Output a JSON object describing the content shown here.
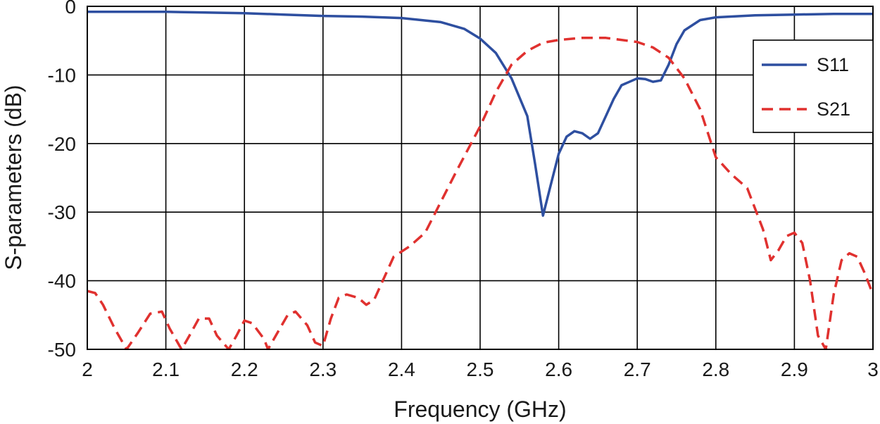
{
  "chart_data": {
    "type": "line",
    "title": "",
    "xlabel": "Frequency (GHz)",
    "ylabel": "S-parameters (dB)",
    "xlim": [
      2,
      3
    ],
    "ylim": [
      -50,
      0
    ],
    "x_ticks": [
      "2",
      "2.1",
      "2.2",
      "2.3",
      "2.4",
      "2.5",
      "2.6",
      "2.7",
      "2.8",
      "2.9",
      "3"
    ],
    "y_ticks": [
      "0",
      "-10",
      "-20",
      "-30",
      "-40",
      "-50"
    ],
    "x_tick_values": [
      2,
      2.1,
      2.2,
      2.3,
      2.4,
      2.5,
      2.6,
      2.7,
      2.8,
      2.9,
      3
    ],
    "y_tick_values": [
      0,
      -10,
      -20,
      -30,
      -40,
      -50
    ],
    "grid": true,
    "legend_position": "top-right",
    "series": [
      {
        "name": "S11",
        "color": "#2e4fa0",
        "dash": "solid",
        "x": [
          2.0,
          2.1,
          2.15,
          2.2,
          2.25,
          2.3,
          2.35,
          2.4,
          2.45,
          2.48,
          2.5,
          2.52,
          2.54,
          2.56,
          2.57,
          2.58,
          2.59,
          2.6,
          2.61,
          2.62,
          2.63,
          2.64,
          2.65,
          2.66,
          2.67,
          2.68,
          2.7,
          2.71,
          2.72,
          2.73,
          2.74,
          2.75,
          2.76,
          2.78,
          2.8,
          2.85,
          2.9,
          2.95,
          3.0
        ],
        "y": [
          -0.8,
          -0.8,
          -0.9,
          -1.0,
          -1.2,
          -1.4,
          -1.5,
          -1.7,
          -2.3,
          -3.3,
          -4.7,
          -6.8,
          -10.5,
          -16,
          -23,
          -30.5,
          -26,
          -21.5,
          -19,
          -18.2,
          -18.5,
          -19.3,
          -18.5,
          -16,
          -13.5,
          -11.5,
          -10.5,
          -10.6,
          -11,
          -10.8,
          -8.5,
          -5.5,
          -3.5,
          -2.0,
          -1.6,
          -1.3,
          -1.2,
          -1.1,
          -1.1
        ]
      },
      {
        "name": "S21",
        "color": "#e0312f",
        "dash": "dashed",
        "x": [
          2.0,
          2.01,
          2.02,
          2.035,
          2.05,
          2.065,
          2.08,
          2.095,
          2.105,
          2.12,
          2.13,
          2.142,
          2.155,
          2.165,
          2.18,
          2.19,
          2.2,
          2.21,
          2.225,
          2.23,
          2.24,
          2.255,
          2.265,
          2.28,
          2.29,
          2.3,
          2.31,
          2.32,
          2.33,
          2.345,
          2.355,
          2.365,
          2.38,
          2.39,
          2.41,
          2.43,
          2.45,
          2.47,
          2.5,
          2.52,
          2.54,
          2.56,
          2.58,
          2.6,
          2.63,
          2.66,
          2.7,
          2.72,
          2.74,
          2.76,
          2.78,
          2.8,
          2.82,
          2.84,
          2.86,
          2.87,
          2.88,
          2.89,
          2.9,
          2.91,
          2.92,
          2.93,
          2.94,
          2.95,
          2.96,
          2.97,
          2.98,
          2.99,
          3.0
        ],
        "y": [
          -41.5,
          -41.8,
          -43.5,
          -47,
          -50,
          -47.5,
          -44.8,
          -44.5,
          -47,
          -50,
          -48,
          -45.5,
          -45.5,
          -48,
          -50,
          -48,
          -45.8,
          -46.2,
          -48.5,
          -50,
          -48,
          -45,
          -44.5,
          -46.5,
          -49,
          -49.5,
          -45.5,
          -42.5,
          -42,
          -42.5,
          -43.5,
          -42.8,
          -39,
          -36.5,
          -35,
          -33,
          -28.5,
          -24,
          -17.5,
          -12.5,
          -8.5,
          -6.5,
          -5.3,
          -4.9,
          -4.6,
          -4.6,
          -5.2,
          -6,
          -7.5,
          -10.5,
          -15,
          -22,
          -24.5,
          -26.5,
          -32.5,
          -37,
          -35.5,
          -33.5,
          -33,
          -34.5,
          -40,
          -48,
          -50,
          -42,
          -37,
          -36,
          -36.5,
          -39,
          -42
        ]
      }
    ]
  }
}
